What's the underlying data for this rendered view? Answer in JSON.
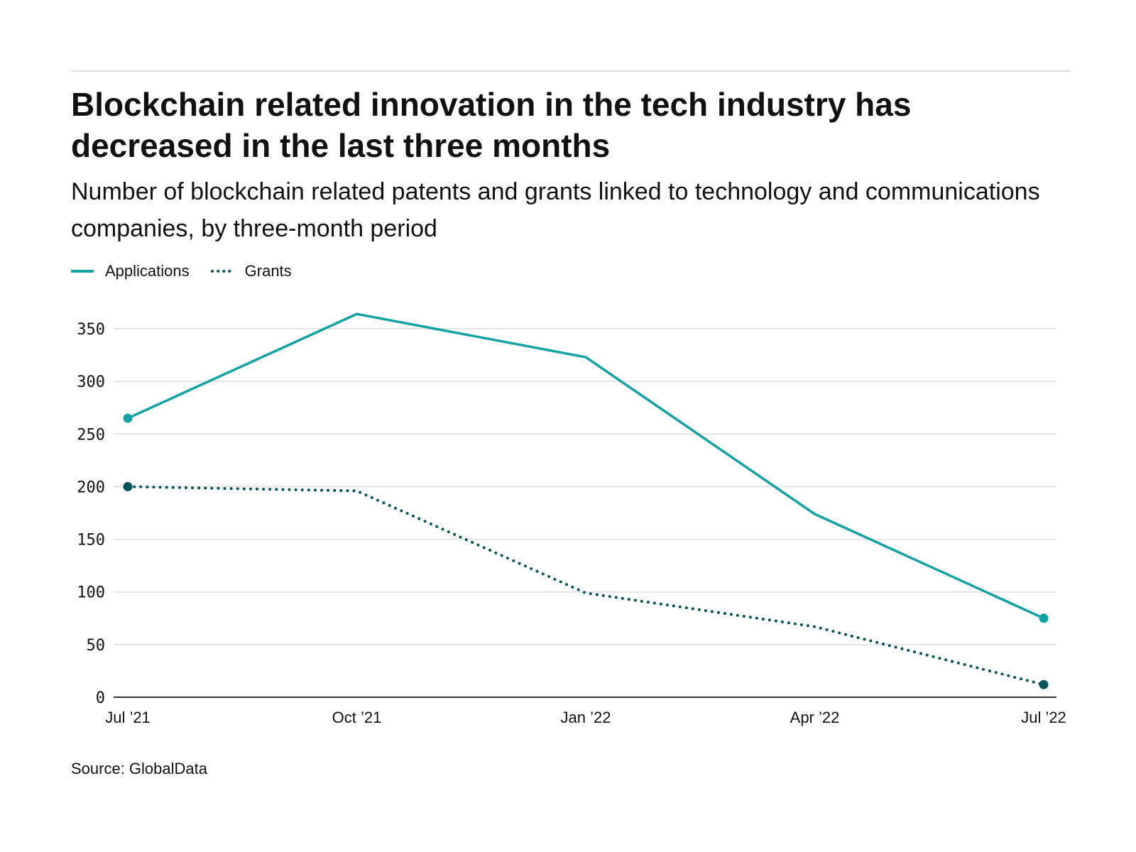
{
  "title": "Blockchain related innovation in the tech industry has decreased in the last three months",
  "subtitle": "Number of blockchain related patents and grants linked to technology and communications companies, by three-month period",
  "source": "Source: GlobalData",
  "chart_data": {
    "type": "line",
    "title": "Blockchain related innovation in the tech industry has decreased in the last three months",
    "subtitle": "Number of blockchain related patents and grants linked to technology and communications companies, by three-month period",
    "categories": [
      "Jul ’21",
      "Oct ’21",
      "Jan ’22",
      "Apr ’22",
      "Jul ’22"
    ],
    "series": [
      {
        "name": "Applications",
        "values": [
          265,
          364,
          323,
          174,
          75
        ],
        "color": "#13a3a4",
        "style": "solid"
      },
      {
        "name": "Grants",
        "values": [
          200,
          196,
          99,
          67,
          12
        ],
        "color": "#04545a",
        "style": "dotted"
      }
    ],
    "ylim": [
      0,
      350
    ],
    "yticks": [
      0,
      50,
      100,
      150,
      200,
      250,
      300,
      350
    ],
    "grid": true,
    "legend": "top-left",
    "xlabel": "",
    "ylabel": ""
  }
}
